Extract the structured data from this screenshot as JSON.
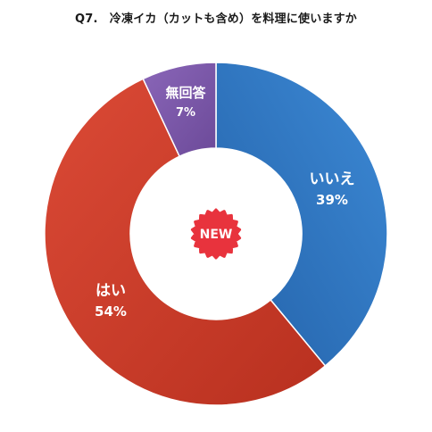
{
  "chart_data": {
    "type": "pie",
    "title": "Q7.　冷凍イカ（カットも含め）を料理に使いますか",
    "categories": [
      "いいえ",
      "はい",
      "無回答"
    ],
    "values": [
      39,
      54,
      7
    ],
    "value_labels": [
      "39%",
      "54%",
      "7%"
    ],
    "colors": [
      "#2f7bc7",
      "#d13f2d",
      "#7e59ad"
    ],
    "legend": "none",
    "donut": true
  },
  "badge": {
    "label": "NEW",
    "color": "#e8333d"
  }
}
